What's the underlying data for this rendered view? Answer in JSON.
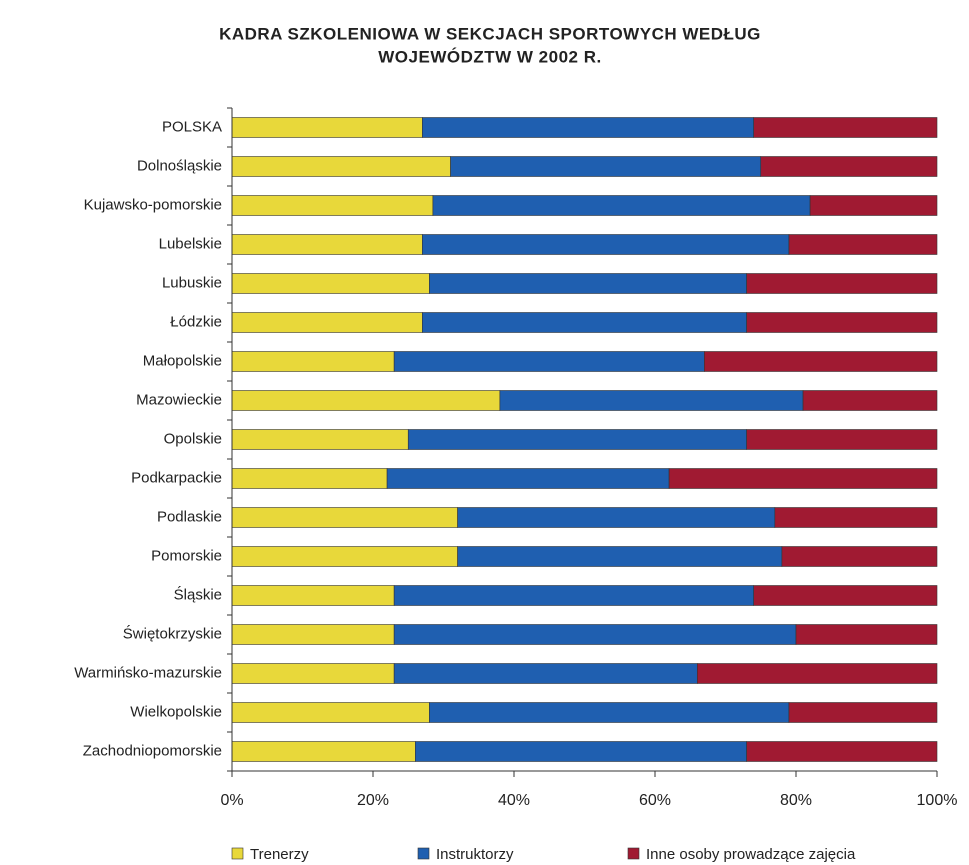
{
  "chart_data": {
    "type": "stacked_barh",
    "title": "KADRA SZKOLENIOWA W SEKCJACH SPORTOWYCH WEDŁUG",
    "subtitle": "WOJEWÓDZTW W 2002 R.",
    "categories": [
      "POLSKA",
      "Dolnośląskie",
      "Kujawsko-pomorskie",
      "Lubelskie",
      "Lubuskie",
      "Łódzkie",
      "Małopolskie",
      "Mazowieckie",
      "Opolskie",
      "Podkarpackie",
      "Podlaskie",
      "Pomorskie",
      "Śląskie",
      "Świętokrzyskie",
      "Warmińsko-mazurskie",
      "Wielkopolskie",
      "Zachodniopomorskie"
    ],
    "series": [
      {
        "name": "Trenerzy",
        "color": "#e8d83a",
        "values": [
          27,
          31,
          28.5,
          27,
          28,
          27,
          23,
          38,
          25,
          22,
          32,
          32,
          23,
          23,
          23,
          28,
          26
        ]
      },
      {
        "name": "Instruktorzy",
        "color": "#1f5fb0",
        "values": [
          47,
          44,
          53.5,
          52,
          45,
          46,
          44,
          43,
          48,
          40,
          45,
          46,
          51,
          57,
          43,
          51,
          47
        ]
      },
      {
        "name": "Inne osoby prowadzące zajęcia",
        "color": "#a01a32",
        "values": [
          26,
          25,
          18,
          21,
          27,
          27,
          33,
          19,
          27,
          38,
          23,
          22,
          26,
          20,
          34,
          21,
          27
        ]
      }
    ],
    "xlim": [
      0,
      100
    ],
    "xticks": [
      {
        "value": 0,
        "label": "0%"
      },
      {
        "value": 20,
        "label": "20%"
      },
      {
        "value": 40,
        "label": "40%"
      },
      {
        "value": 60,
        "label": "60%"
      },
      {
        "value": 80,
        "label": "80%"
      },
      {
        "value": 100,
        "label": "100%"
      }
    ],
    "legend": "bottom"
  }
}
